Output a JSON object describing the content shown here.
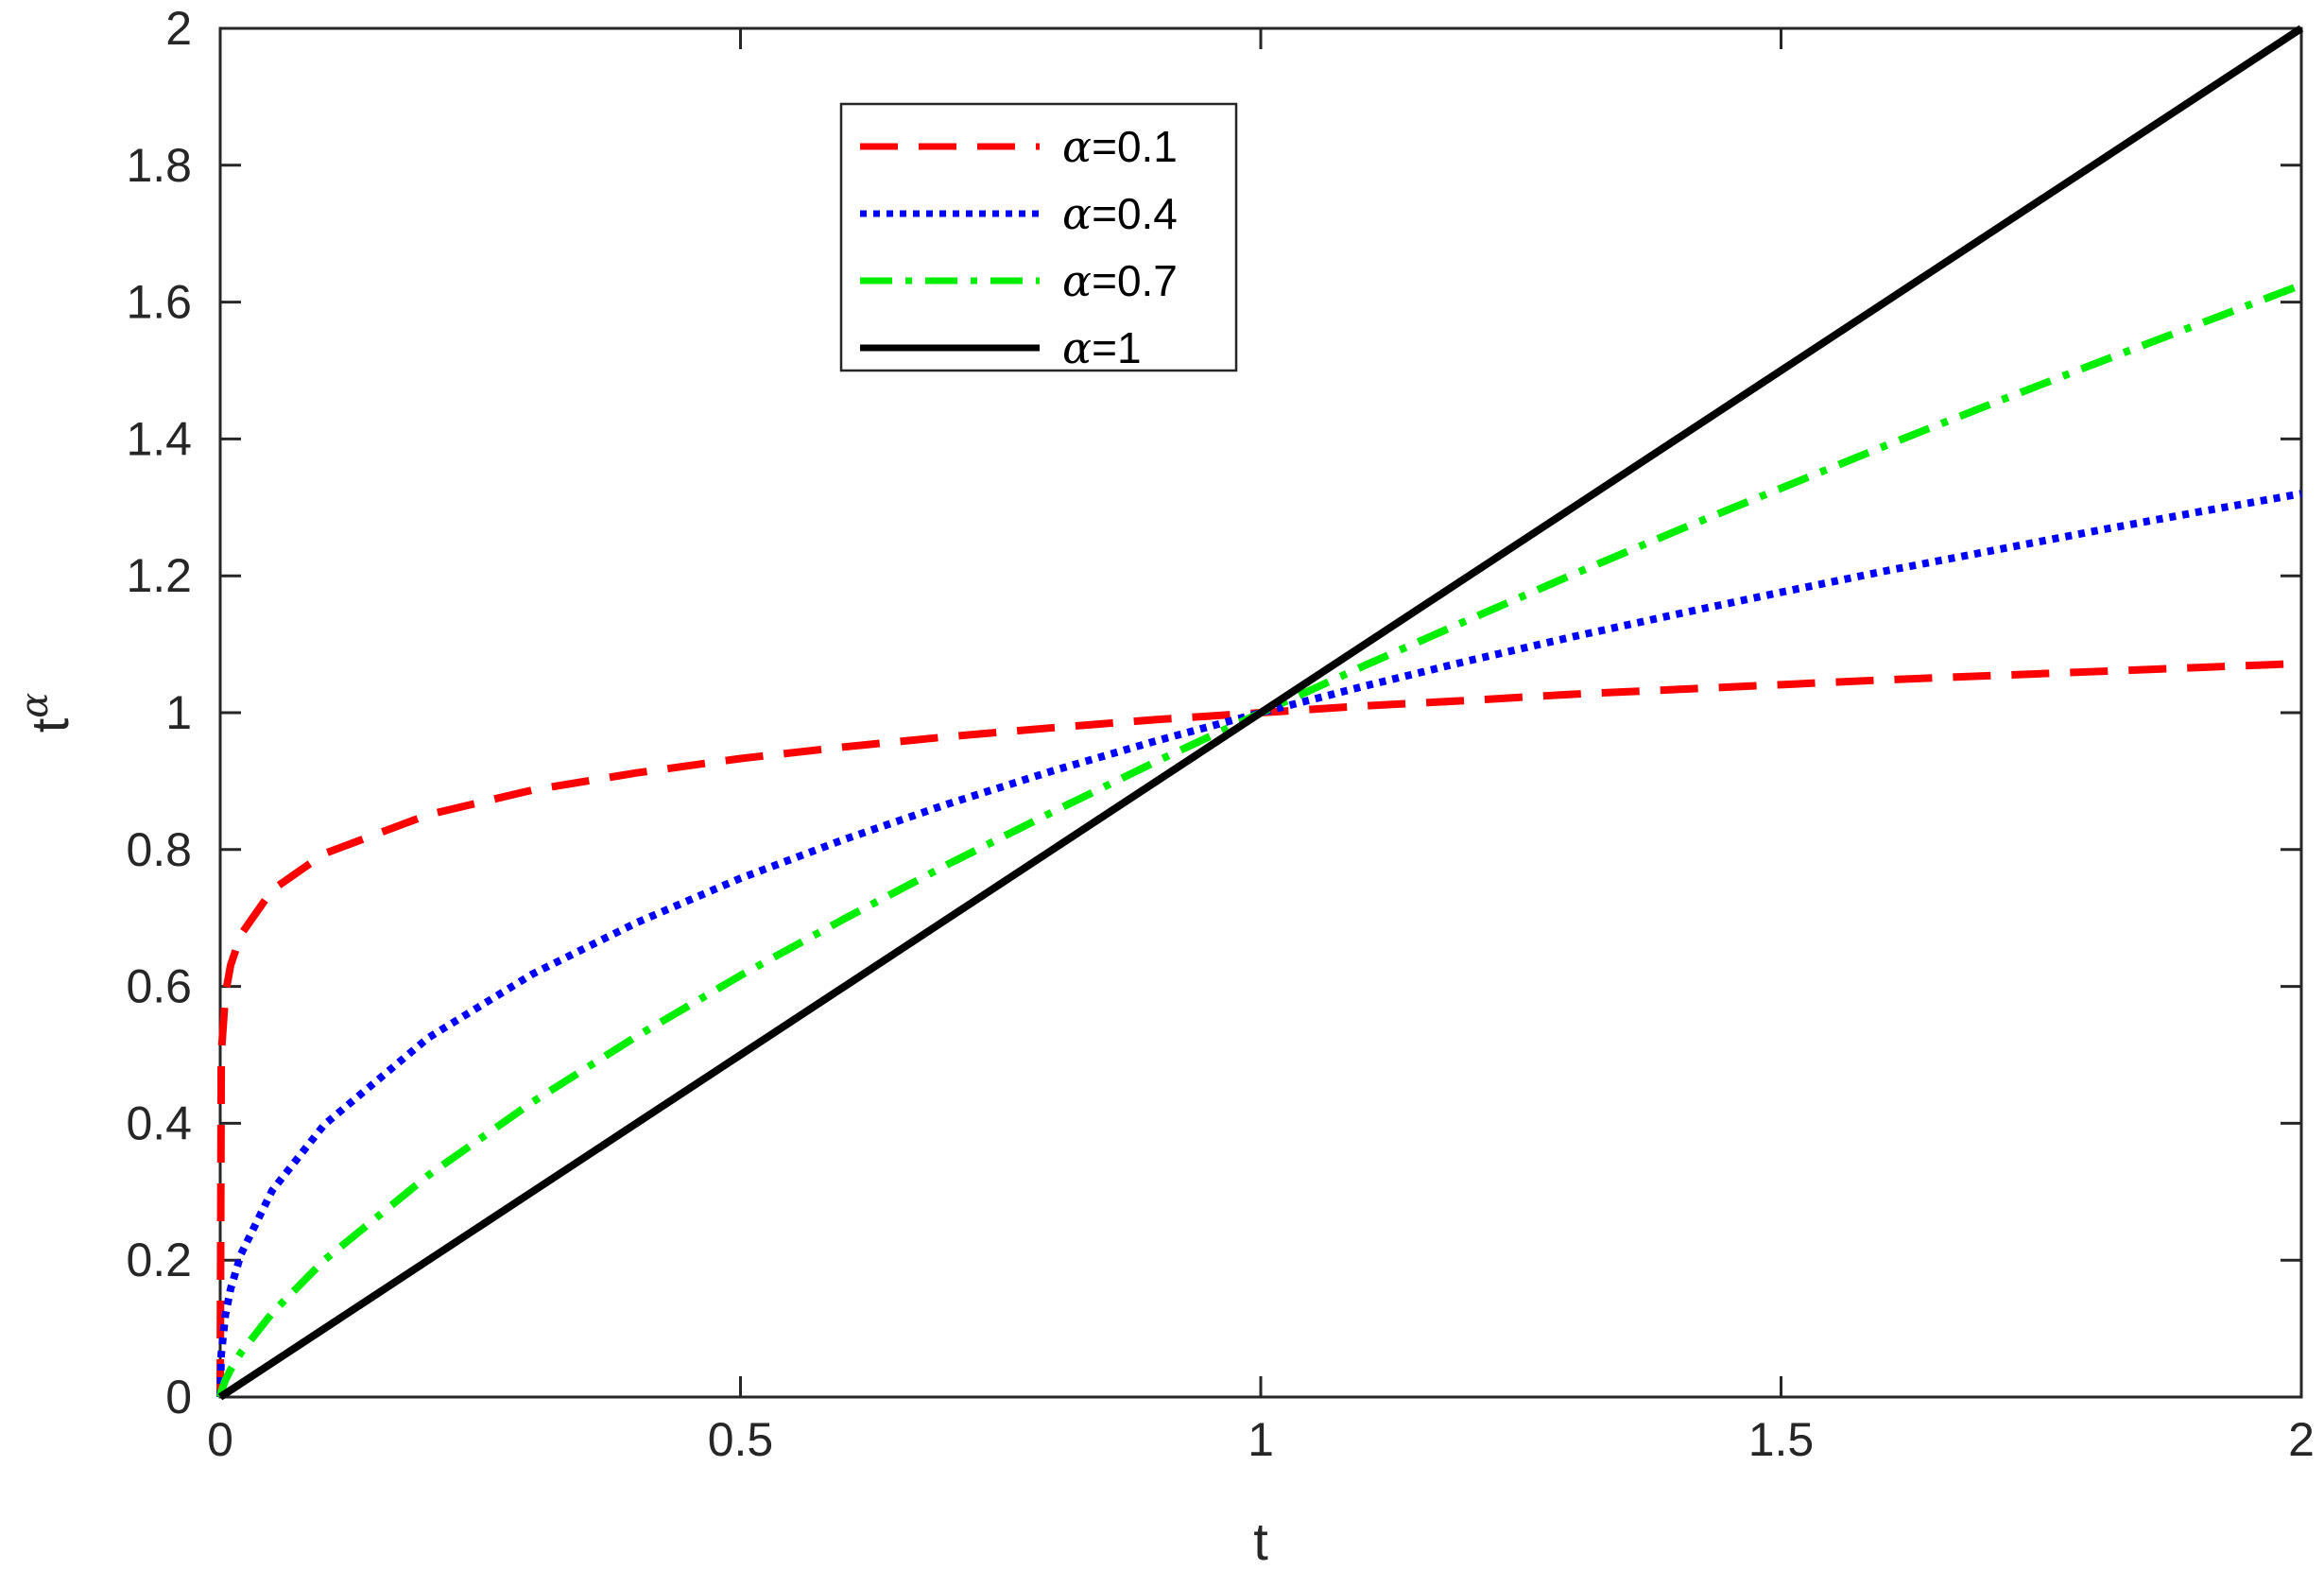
{
  "chart_data": {
    "type": "line",
    "title": "",
    "xlabel": "t",
    "ylabel": {
      "base": "t",
      "superscript": "α"
    },
    "xlim": [
      0,
      2
    ],
    "ylim": [
      0,
      2
    ],
    "xticks": [
      "0",
      "0.5",
      "1",
      "1.5",
      "2"
    ],
    "yticks": [
      "0",
      "0.2",
      "0.4",
      "0.6",
      "0.8",
      "1",
      "1.2",
      "1.4",
      "1.6",
      "1.8",
      "2"
    ],
    "grid": false,
    "legend": {
      "placement": "top-center-left"
    },
    "x": [
      0,
      0.001,
      0.005,
      0.01,
      0.02,
      0.05,
      0.1,
      0.2,
      0.3,
      0.4,
      0.5,
      0.6,
      0.7,
      0.8,
      0.9,
      1.0,
      1.1,
      1.2,
      1.3,
      1.4,
      1.5,
      1.6,
      1.7,
      1.8,
      1.9,
      2.0
    ],
    "series": [
      {
        "name": "α=0.1",
        "symbol": "α",
        "value_label": "=0.1",
        "color": "#ff0000",
        "style": "dashed",
        "values": [
          0,
          0.501,
          0.589,
          0.631,
          0.676,
          0.741,
          0.794,
          0.851,
          0.887,
          0.912,
          0.933,
          0.95,
          0.965,
          0.978,
          0.99,
          1.0,
          1.01,
          1.018,
          1.027,
          1.034,
          1.041,
          1.048,
          1.054,
          1.06,
          1.066,
          1.072
        ]
      },
      {
        "name": "α=0.4",
        "symbol": "α",
        "value_label": "=0.4",
        "color": "#0000ff",
        "style": "dotted",
        "values": [
          0,
          0.063,
          0.12,
          0.158,
          0.209,
          0.302,
          0.398,
          0.525,
          0.618,
          0.693,
          0.758,
          0.815,
          0.867,
          0.915,
          0.959,
          1.0,
          1.039,
          1.076,
          1.111,
          1.144,
          1.176,
          1.207,
          1.236,
          1.265,
          1.293,
          1.32
        ]
      },
      {
        "name": "α=0.7",
        "symbol": "α",
        "value_label": "=0.7",
        "color": "#00ee00",
        "style": "dashdot",
        "values": [
          0,
          0.008,
          0.025,
          0.04,
          0.065,
          0.123,
          0.2,
          0.324,
          0.431,
          0.527,
          0.616,
          0.699,
          0.779,
          0.855,
          0.929,
          1.0,
          1.069,
          1.136,
          1.202,
          1.266,
          1.328,
          1.39,
          1.45,
          1.509,
          1.567,
          1.625
        ]
      },
      {
        "name": "α=1",
        "symbol": "α",
        "value_label": "=1",
        "color": "#000000",
        "style": "solid",
        "values": [
          0,
          0.001,
          0.005,
          0.01,
          0.02,
          0.05,
          0.1,
          0.2,
          0.3,
          0.4,
          0.5,
          0.6,
          0.7,
          0.8,
          0.9,
          1.0,
          1.1,
          1.2,
          1.3,
          1.4,
          1.5,
          1.6,
          1.7,
          1.8,
          1.9,
          2.0
        ]
      }
    ]
  }
}
